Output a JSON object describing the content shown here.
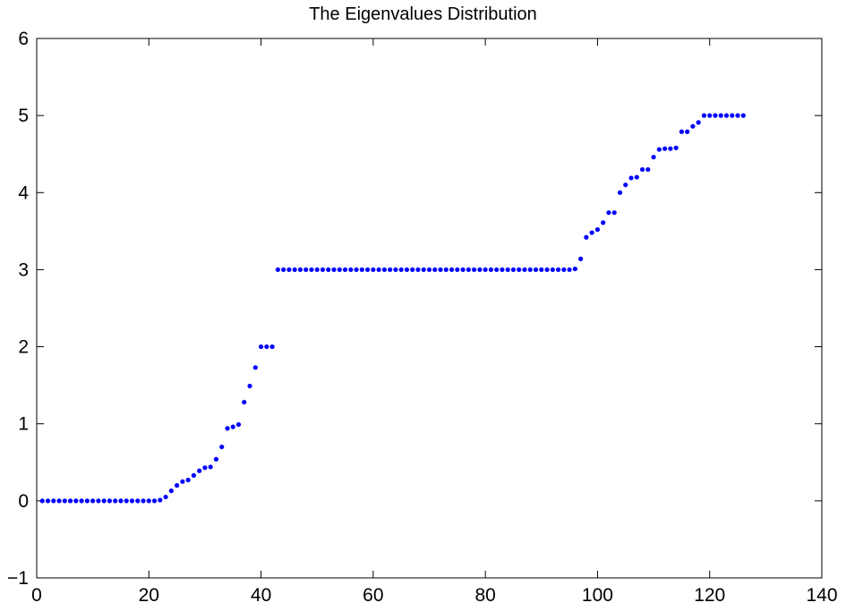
{
  "chart_data": {
    "type": "scatter",
    "title": "The Eigenvalues Distribution",
    "xlabel": "",
    "ylabel": "",
    "xlim": [
      0,
      140
    ],
    "ylim": [
      -1,
      6
    ],
    "xticks": [
      "0",
      "20",
      "40",
      "60",
      "80",
      "100",
      "120",
      "140"
    ],
    "yticks": [
      "−1",
      "0",
      "1",
      "2",
      "3",
      "4",
      "5",
      "6"
    ],
    "grid": false,
    "marker_color": "#0000ff",
    "series": [
      {
        "x": [
          1,
          2,
          3,
          4,
          5,
          6,
          7,
          8,
          9,
          10,
          11,
          12,
          13,
          14,
          15,
          16,
          17,
          18,
          19,
          20,
          21,
          22,
          23,
          24,
          25,
          26,
          27,
          28,
          29,
          30,
          31,
          32,
          33,
          34,
          35,
          36,
          37,
          38,
          39,
          40,
          41,
          42,
          43,
          44,
          45,
          46,
          47,
          48,
          49,
          50,
          51,
          52,
          53,
          54,
          55,
          56,
          57,
          58,
          59,
          60,
          61,
          62,
          63,
          64,
          65,
          66,
          67,
          68,
          69,
          70,
          71,
          72,
          73,
          74,
          75,
          76,
          77,
          78,
          79,
          80,
          81,
          82,
          83,
          84,
          85,
          86,
          87,
          88,
          89,
          90,
          91,
          92,
          93,
          94,
          95,
          96,
          97,
          98,
          99,
          100,
          101,
          102,
          103,
          104,
          105,
          106,
          107,
          108,
          109,
          110,
          111,
          112,
          113,
          114,
          115,
          116,
          117,
          118,
          119,
          120,
          121,
          122,
          123,
          124,
          125,
          126
        ],
        "y": [
          0,
          0,
          0,
          0,
          0,
          0,
          0,
          0,
          0,
          0,
          0,
          0,
          0,
          0,
          0,
          0,
          0,
          0,
          0,
          0,
          0,
          0.01,
          0.05,
          0.13,
          0.2,
          0.25,
          0.27,
          0.33,
          0.39,
          0.43,
          0.44,
          0.54,
          0.7,
          0.94,
          0.96,
          0.99,
          1.28,
          1.49,
          1.73,
          2.0,
          2.0,
          2.0,
          3.0,
          3.0,
          3.0,
          3.0,
          3.0,
          3.0,
          3.0,
          3.0,
          3.0,
          3.0,
          3.0,
          3.0,
          3.0,
          3.0,
          3.0,
          3.0,
          3.0,
          3.0,
          3.0,
          3.0,
          3.0,
          3.0,
          3.0,
          3.0,
          3.0,
          3.0,
          3.0,
          3.0,
          3.0,
          3.0,
          3.0,
          3.0,
          3.0,
          3.0,
          3.0,
          3.0,
          3.0,
          3.0,
          3.0,
          3.0,
          3.0,
          3.0,
          3.0,
          3.0,
          3.0,
          3.0,
          3.0,
          3.0,
          3.0,
          3.0,
          3.0,
          3.0,
          3.0,
          3.01,
          3.14,
          3.42,
          3.48,
          3.52,
          3.61,
          3.74,
          3.74,
          4.0,
          4.1,
          4.19,
          4.2,
          4.3,
          4.3,
          4.46,
          4.56,
          4.57,
          4.57,
          4.58,
          4.79,
          4.79,
          4.86,
          4.91,
          5.0,
          5.0,
          5.0,
          5.0,
          5.0,
          5.0,
          5.0,
          5.0
        ]
      }
    ]
  }
}
